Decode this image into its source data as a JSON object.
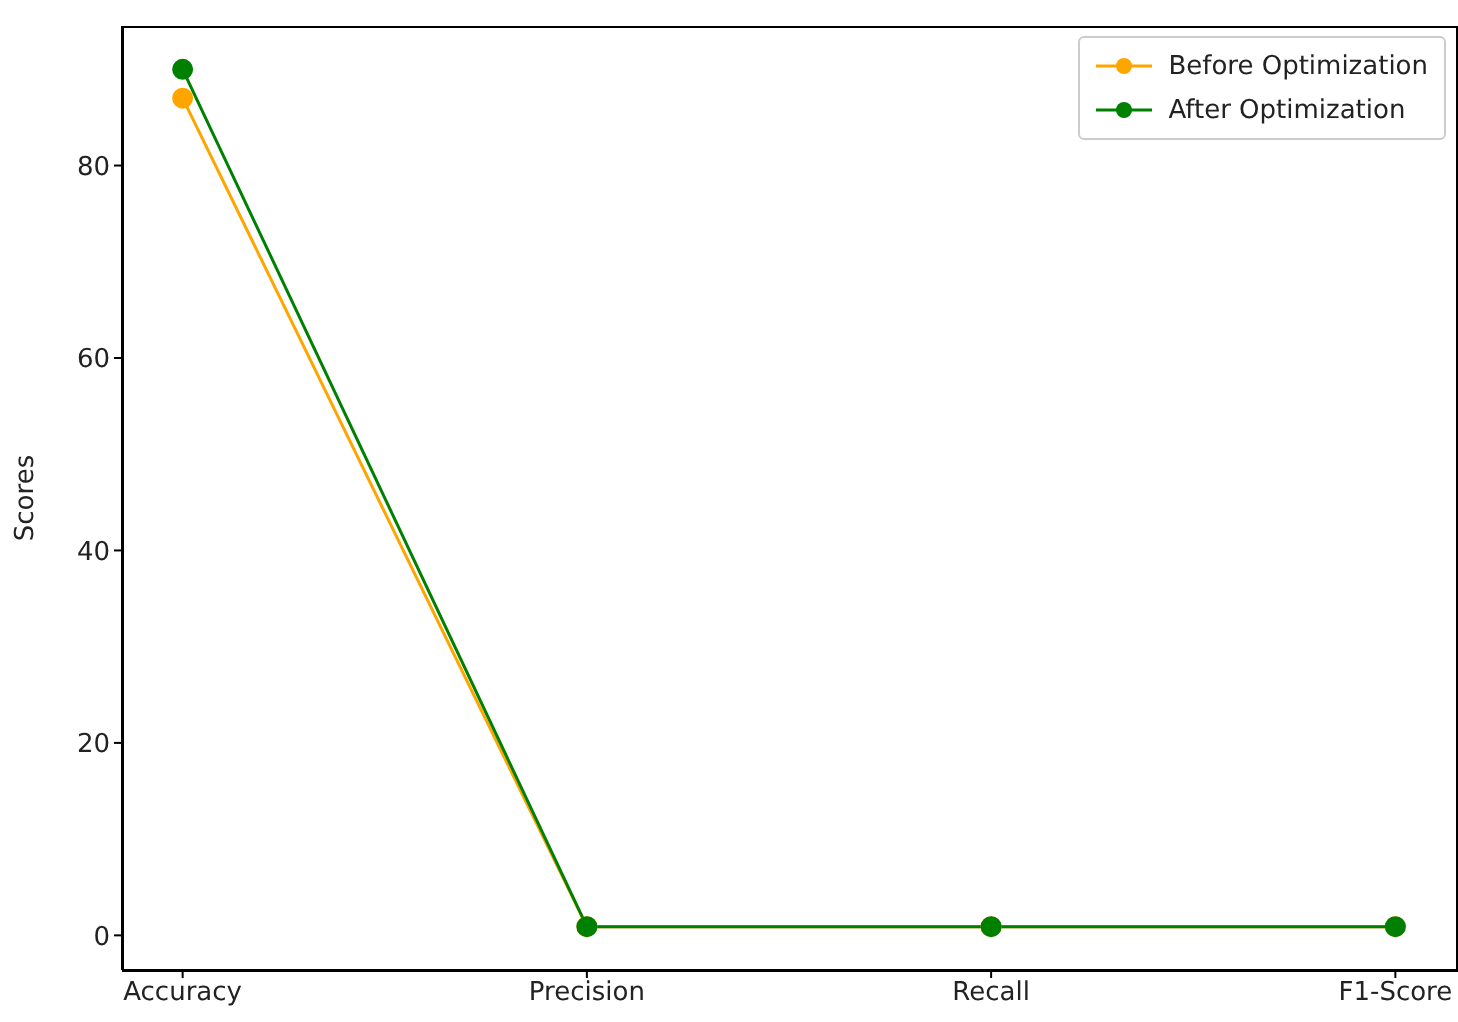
{
  "chart_data": {
    "type": "line",
    "ylabel": "Scores",
    "categories": [
      "Accuracy",
      "Precision",
      "Recall",
      "F1-Score"
    ],
    "series": [
      {
        "name": "Before Optimization",
        "color": "#ffa500",
        "values": [
          87,
          0.9,
          0.9,
          0.9
        ]
      },
      {
        "name": "After Optimization",
        "color": "#008000",
        "values": [
          90,
          0.9,
          0.9,
          0.9
        ]
      }
    ],
    "ylim": [
      -3.6,
      94.5
    ],
    "yticks": [
      0,
      20,
      40,
      60,
      80
    ],
    "grid": false,
    "legend": "top right",
    "marker": "circle",
    "line_style": "solid"
  }
}
